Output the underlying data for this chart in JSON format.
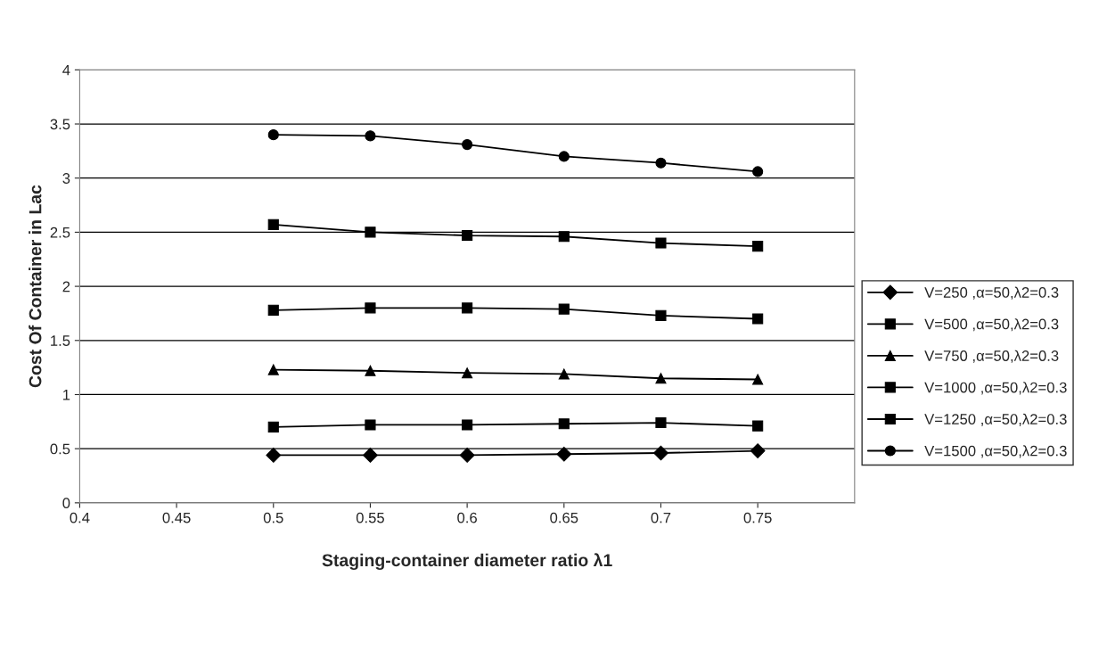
{
  "chart_data": {
    "type": "line",
    "xlabel": "Staging-container diameter ratio λ1",
    "ylabel": "Cost Of Container in Lac",
    "x": [
      0.5,
      0.55,
      0.6,
      0.65,
      0.7,
      0.75
    ],
    "xlim": [
      0.4,
      0.8
    ],
    "xticks": [
      0.4,
      0.45,
      0.5,
      0.55,
      0.6,
      0.65,
      0.7,
      0.75
    ],
    "ylim": [
      0,
      4
    ],
    "yticks": [
      0,
      0.5,
      1,
      1.5,
      2,
      2.5,
      3,
      3.5,
      4
    ],
    "grid": "y",
    "legend": "right",
    "series": [
      {
        "name": "V=250 ,α=50,λ2=0.3",
        "color": "#000000",
        "marker": "diamond",
        "values": [
          0.44,
          0.44,
          0.44,
          0.45,
          0.46,
          0.48
        ]
      },
      {
        "name": "V=500 ,α=50,λ2=0.3",
        "color": "#000000",
        "marker": "square",
        "values": [
          0.7,
          0.72,
          0.72,
          0.73,
          0.74,
          0.71
        ]
      },
      {
        "name": "V=750 ,α=50,λ2=0.3",
        "color": "#000000",
        "marker": "triangle",
        "values": [
          1.23,
          1.22,
          1.2,
          1.19,
          1.15,
          1.14
        ]
      },
      {
        "name": "V=1000 ,α=50,λ2=0.3",
        "color": "#000000",
        "marker": "square",
        "values": [
          1.78,
          1.8,
          1.8,
          1.79,
          1.73,
          1.7
        ]
      },
      {
        "name": "V=1250 ,α=50,λ2=0.3",
        "color": "#000000",
        "marker": "square",
        "values": [
          2.57,
          2.5,
          2.47,
          2.46,
          2.4,
          2.37
        ]
      },
      {
        "name": "V=1500 ,α=50,λ2=0.3",
        "color": "#000000",
        "marker": "circle",
        "values": [
          3.4,
          3.39,
          3.31,
          3.2,
          3.14,
          3.06
        ]
      }
    ]
  }
}
